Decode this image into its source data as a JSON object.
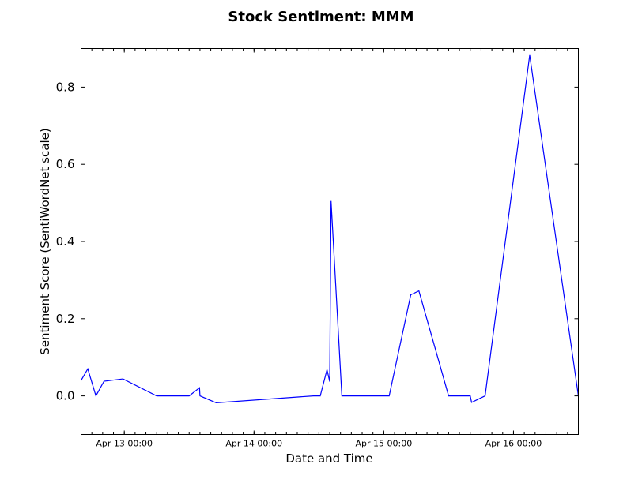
{
  "chart_data": {
    "type": "line",
    "title": "Stock Sentiment: MMM",
    "xlabel": "Date and Time",
    "ylabel": "Sentiment Score (SentiWordNet scale)",
    "xlim": [
      "2015-04-12 16:00",
      "2015-04-16 12:00"
    ],
    "ylim": [
      -0.1,
      0.9
    ],
    "yticks": [
      0.0,
      0.2,
      0.4,
      0.6,
      0.8
    ],
    "ytick_labels": [
      "0.0",
      "0.2",
      "0.4",
      "0.6",
      "0.8"
    ],
    "xticks": [
      "2015-04-13 00:00",
      "2015-04-14 00:00",
      "2015-04-15 00:00",
      "2015-04-16 00:00"
    ],
    "xtick_labels": [
      "Apr 13 00:00",
      "Apr 14 00:00",
      "Apr 15 00:00",
      "Apr 16 00:00"
    ],
    "grid": false,
    "series": [
      {
        "color": "#0000ff",
        "x": [
          "2015-04-12 16:00",
          "2015-04-12 17:15",
          "2015-04-12 18:45",
          "2015-04-12 20:15",
          "2015-04-12 23:45",
          "2015-04-13 06:00",
          "2015-04-13 12:00",
          "2015-04-13 13:55",
          "2015-04-13 14:00",
          "2015-04-13 17:00",
          "2015-04-14 11:00",
          "2015-04-14 12:15",
          "2015-04-14 13:30",
          "2015-04-14 14:00",
          "2015-04-14 14:15",
          "2015-04-14 16:15",
          "2015-04-15 01:00",
          "2015-04-15 05:00",
          "2015-04-15 06:30",
          "2015-04-15 12:00",
          "2015-04-15 16:00",
          "2015-04-15 16:15",
          "2015-04-15 18:45",
          "2015-04-16 03:00",
          "2015-04-16 12:00"
        ],
        "y": [
          0.04,
          0.07,
          0.0,
          0.038,
          0.044,
          0.0,
          0.0,
          0.021,
          0.0,
          -0.018,
          0.0,
          0.0,
          0.068,
          0.037,
          0.505,
          0.0,
          0.0,
          0.262,
          0.272,
          0.0,
          0.0,
          -0.017,
          0.0,
          0.883,
          0.0
        ]
      }
    ]
  }
}
